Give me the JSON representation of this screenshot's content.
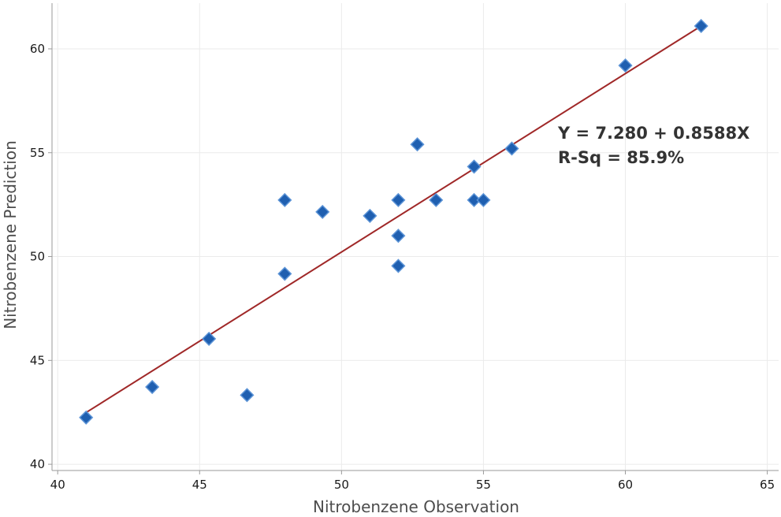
{
  "chart_data": {
    "type": "scatter",
    "title": "",
    "xlabel": "Nitrobenzene Observation",
    "ylabel": "Nitrobenzene Prediction",
    "xlim": [
      39.8,
      65.4
    ],
    "ylim": [
      39.7,
      62.2
    ],
    "xticks": [
      40,
      45,
      50,
      55,
      60,
      65
    ],
    "yticks": [
      40,
      45,
      50,
      55,
      60
    ],
    "grid": true,
    "points": [
      {
        "x": 41.0,
        "y": 42.25
      },
      {
        "x": 43.33,
        "y": 43.72
      },
      {
        "x": 45.33,
        "y": 46.04
      },
      {
        "x": 46.67,
        "y": 43.33
      },
      {
        "x": 48.0,
        "y": 52.72
      },
      {
        "x": 48.0,
        "y": 49.17
      },
      {
        "x": 49.33,
        "y": 52.15
      },
      {
        "x": 51.0,
        "y": 51.96
      },
      {
        "x": 52.0,
        "y": 52.72
      },
      {
        "x": 52.0,
        "y": 51.0
      },
      {
        "x": 52.0,
        "y": 49.55
      },
      {
        "x": 52.67,
        "y": 55.4
      },
      {
        "x": 53.33,
        "y": 52.72
      },
      {
        "x": 54.67,
        "y": 54.33
      },
      {
        "x": 54.67,
        "y": 52.72
      },
      {
        "x": 55.0,
        "y": 52.72
      },
      {
        "x": 56.0,
        "y": 55.2
      },
      {
        "x": 60.0,
        "y": 59.2
      },
      {
        "x": 62.67,
        "y": 61.1
      }
    ],
    "fit": {
      "intercept": 7.28,
      "slope": 0.8588,
      "x_range": [
        41.0,
        62.67
      ]
    },
    "annotations": [
      "Y = 7.280 + 0.8588X",
      "R-Sq = 85.9%"
    ],
    "colors": {
      "marker": "#1f5fb0",
      "marker_edge": "#5b93d6",
      "fit_line": "#a02828",
      "grid": "#ebebeb",
      "axis": "#9a9a9a"
    }
  }
}
